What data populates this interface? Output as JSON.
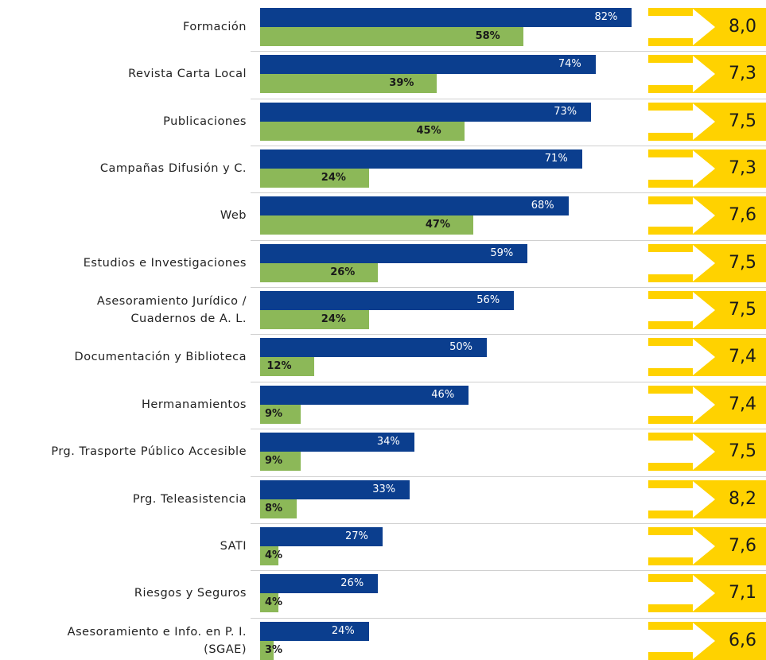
{
  "chart_data": {
    "type": "bar",
    "categories": [
      "Formación",
      "Revista Carta Local",
      "Publicaciones",
      "Campañas Difusión y C.",
      "Web",
      "Estudios e Investigaciones ",
      "Asesoramiento Jurídico /\nCuadernos de A. L.",
      "Documentación y Biblioteca",
      "Hermanamientos",
      "Prg. Trasporte Público Accesible",
      "Prg. Teleasistencia",
      "SATI",
      "Riesgos y Seguros",
      "Asesoramiento e Info. en P. I.\n(SGAE)"
    ],
    "xlim": [
      0,
      100
    ],
    "series": [
      {
        "color": "#0b3e8e",
        "values": [
          82,
          74,
          73,
          71,
          68,
          59,
          56,
          50,
          46,
          34,
          33,
          27,
          26,
          24
        ],
        "value_labels": [
          "82%",
          "74%",
          "73%",
          "71%",
          "68%",
          "59%",
          "56%",
          "50%",
          "46%",
          "34%",
          "33%",
          "27%",
          "26%",
          "24%"
        ]
      },
      {
        "color": "#8cb858",
        "values": [
          58,
          39,
          45,
          24,
          47,
          26,
          24,
          12,
          9,
          9,
          8,
          4,
          4,
          3
        ],
        "value_labels": [
          "58%",
          "39%",
          "45%",
          "24%",
          "47%",
          "26%",
          "24%",
          "12%",
          "9%",
          "9%",
          "8%",
          "4%",
          "4%",
          "3%"
        ]
      }
    ],
    "scores": {
      "color": "#ffd200",
      "values": [
        8.0,
        7.3,
        7.5,
        7.3,
        7.6,
        7.5,
        7.5,
        7.4,
        7.4,
        7.5,
        8.2,
        7.6,
        7.1,
        6.6
      ],
      "value_labels": [
        "8,0",
        "7,3",
        "7,5",
        "7,3",
        "7,6",
        "7,5",
        "7,5",
        "7,4",
        "7,4",
        "7,5",
        "8,2",
        "7,6",
        "7,1",
        "6,6"
      ]
    }
  }
}
